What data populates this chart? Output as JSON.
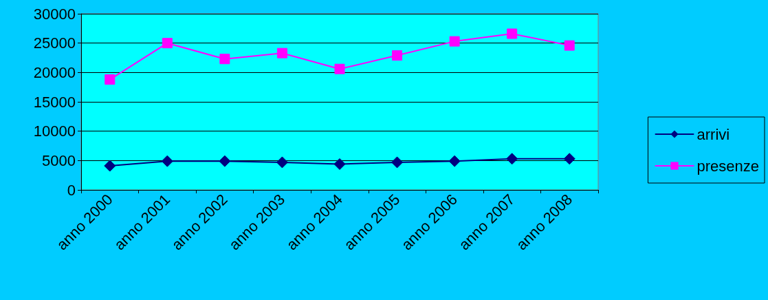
{
  "chart_data": {
    "type": "line",
    "categories": [
      "anno 2000",
      "anno 2001",
      "anno 2002",
      "anno 2003",
      "anno 2004",
      "anno 2005",
      "anno 2006",
      "anno 2007",
      "anno 2008"
    ],
    "series": [
      {
        "name": "arrivi",
        "color": "#000080",
        "marker": "diamond",
        "values": [
          4100,
          4900,
          4900,
          4700,
          4400,
          4700,
          4900,
          5300,
          5300
        ]
      },
      {
        "name": "presenze",
        "color": "#ff00ff",
        "marker": "square",
        "values": [
          18800,
          25000,
          22300,
          23300,
          20600,
          22900,
          25300,
          26600,
          24600
        ]
      }
    ],
    "ylim": [
      0,
      30000
    ],
    "yticks": [
      0,
      5000,
      10000,
      15000,
      20000,
      25000,
      30000
    ],
    "grid": "y",
    "legend": "right",
    "line_style": "solid"
  }
}
